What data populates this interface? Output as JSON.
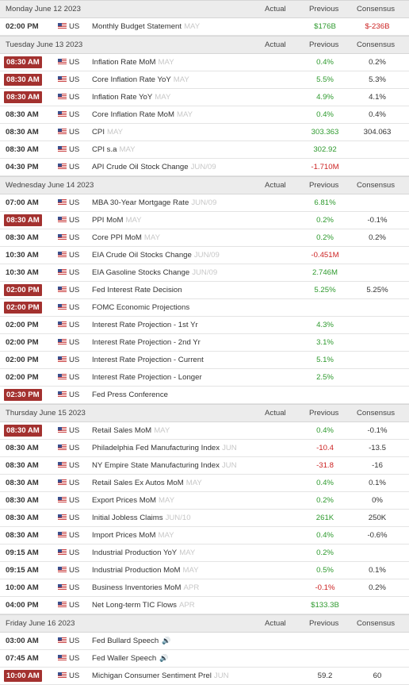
{
  "columns": {
    "actual": "Actual",
    "previous": "Previous",
    "consensus": "Consensus"
  },
  "colors": {
    "highlight": "#a3312f",
    "positive": "#2e9a2e",
    "negative": "#cc2222",
    "header_bg": "#ececec"
  },
  "days": [
    {
      "label": "Monday June 12 2023",
      "events": [
        {
          "time": "02:00 PM",
          "hl": false,
          "country": "US",
          "event": "Monthly Budget Statement",
          "ref": "MAY",
          "actual": "",
          "previous": "$176B",
          "previous_color": "green",
          "consensus": "$-236B",
          "consensus_color": "red"
        }
      ]
    },
    {
      "label": "Tuesday June 13 2023",
      "events": [
        {
          "time": "08:30 AM",
          "hl": true,
          "country": "US",
          "event": "Inflation Rate MoM",
          "ref": "MAY",
          "actual": "",
          "previous": "0.4%",
          "previous_color": "green",
          "consensus": "0.2%"
        },
        {
          "time": "08:30 AM",
          "hl": true,
          "country": "US",
          "event": "Core Inflation Rate YoY",
          "ref": "MAY",
          "actual": "",
          "previous": "5.5%",
          "previous_color": "green",
          "consensus": "5.3%"
        },
        {
          "time": "08:30 AM",
          "hl": true,
          "country": "US",
          "event": "Inflation Rate YoY",
          "ref": "MAY",
          "actual": "",
          "previous": "4.9%",
          "previous_color": "green",
          "consensus": "4.1%"
        },
        {
          "time": "08:30 AM",
          "hl": false,
          "country": "US",
          "event": "Core Inflation Rate MoM",
          "ref": "MAY",
          "actual": "",
          "previous": "0.4%",
          "previous_color": "green",
          "consensus": "0.4%"
        },
        {
          "time": "08:30 AM",
          "hl": false,
          "country": "US",
          "event": "CPI",
          "ref": "MAY",
          "actual": "",
          "previous": "303.363",
          "previous_color": "green",
          "consensus": "304.063"
        },
        {
          "time": "08:30 AM",
          "hl": false,
          "country": "US",
          "event": "CPI s.a",
          "ref": "MAY",
          "actual": "",
          "previous": "302.92",
          "previous_color": "green",
          "consensus": ""
        },
        {
          "time": "04:30 PM",
          "hl": false,
          "country": "US",
          "event": "API Crude Oil Stock Change",
          "ref": "JUN/09",
          "actual": "",
          "previous": "-1.710M",
          "previous_color": "red",
          "consensus": ""
        }
      ]
    },
    {
      "label": "Wednesday June 14 2023",
      "events": [
        {
          "time": "07:00 AM",
          "hl": false,
          "country": "US",
          "event": "MBA 30-Year Mortgage Rate",
          "ref": "JUN/09",
          "actual": "",
          "previous": "6.81%",
          "previous_color": "green",
          "consensus": ""
        },
        {
          "time": "08:30 AM",
          "hl": true,
          "country": "US",
          "event": "PPI MoM",
          "ref": "MAY",
          "actual": "",
          "previous": "0.2%",
          "previous_color": "green",
          "consensus": "-0.1%"
        },
        {
          "time": "08:30 AM",
          "hl": false,
          "country": "US",
          "event": "Core PPI MoM",
          "ref": "MAY",
          "actual": "",
          "previous": "0.2%",
          "previous_color": "green",
          "consensus": "0.2%"
        },
        {
          "time": "10:30 AM",
          "hl": false,
          "country": "US",
          "event": "EIA Crude Oil Stocks Change",
          "ref": "JUN/09",
          "actual": "",
          "previous": "-0.451M",
          "previous_color": "red",
          "consensus": ""
        },
        {
          "time": "10:30 AM",
          "hl": false,
          "country": "US",
          "event": "EIA Gasoline Stocks Change",
          "ref": "JUN/09",
          "actual": "",
          "previous": "2.746M",
          "previous_color": "green",
          "consensus": ""
        },
        {
          "time": "02:00 PM",
          "hl": true,
          "country": "US",
          "event": "Fed Interest Rate Decision",
          "ref": "",
          "actual": "",
          "previous": "5.25%",
          "previous_color": "green",
          "consensus": "5.25%"
        },
        {
          "time": "02:00 PM",
          "hl": true,
          "country": "US",
          "event": "FOMC Economic Projections",
          "ref": "",
          "actual": "",
          "previous": "",
          "previous_color": "green",
          "consensus": ""
        },
        {
          "time": "02:00 PM",
          "hl": false,
          "country": "US",
          "event": "Interest Rate Projection - 1st Yr",
          "ref": "",
          "actual": "",
          "previous": "4.3%",
          "previous_color": "green",
          "consensus": ""
        },
        {
          "time": "02:00 PM",
          "hl": false,
          "country": "US",
          "event": "Interest Rate Projection - 2nd Yr",
          "ref": "",
          "actual": "",
          "previous": "3.1%",
          "previous_color": "green",
          "consensus": ""
        },
        {
          "time": "02:00 PM",
          "hl": false,
          "country": "US",
          "event": "Interest Rate Projection - Current",
          "ref": "",
          "actual": "",
          "previous": "5.1%",
          "previous_color": "green",
          "consensus": ""
        },
        {
          "time": "02:00 PM",
          "hl": false,
          "country": "US",
          "event": "Interest Rate Projection - Longer",
          "ref": "",
          "actual": "",
          "previous": "2.5%",
          "previous_color": "green",
          "consensus": ""
        },
        {
          "time": "02:30 PM",
          "hl": true,
          "country": "US",
          "event": "Fed Press Conference",
          "ref": "",
          "actual": "",
          "previous": "",
          "previous_color": "green",
          "consensus": ""
        }
      ]
    },
    {
      "label": "Thursday June 15 2023",
      "events": [
        {
          "time": "08:30 AM",
          "hl": true,
          "country": "US",
          "event": "Retail Sales MoM",
          "ref": "MAY",
          "actual": "",
          "previous": "0.4%",
          "previous_color": "green",
          "consensus": "-0.1%"
        },
        {
          "time": "08:30 AM",
          "hl": false,
          "country": "US",
          "event": "Philadelphia Fed Manufacturing Index",
          "ref": "JUN",
          "actual": "",
          "previous": "-10.4",
          "previous_color": "red",
          "consensus": "-13.5"
        },
        {
          "time": "08:30 AM",
          "hl": false,
          "country": "US",
          "event": "NY Empire State Manufacturing Index",
          "ref": "JUN",
          "actual": "",
          "previous": "-31.8",
          "previous_color": "red",
          "consensus": "-16"
        },
        {
          "time": "08:30 AM",
          "hl": false,
          "country": "US",
          "event": "Retail Sales Ex Autos MoM",
          "ref": "MAY",
          "actual": "",
          "previous": "0.4%",
          "previous_color": "green",
          "consensus": "0.1%"
        },
        {
          "time": "08:30 AM",
          "hl": false,
          "country": "US",
          "event": "Export Prices MoM",
          "ref": "MAY",
          "actual": "",
          "previous": "0.2%",
          "previous_color": "green",
          "consensus": "0%"
        },
        {
          "time": "08:30 AM",
          "hl": false,
          "country": "US",
          "event": "Initial Jobless Claims",
          "ref": "JUN/10",
          "actual": "",
          "previous": "261K",
          "previous_color": "green",
          "consensus": "250K"
        },
        {
          "time": "08:30 AM",
          "hl": false,
          "country": "US",
          "event": "Import Prices MoM",
          "ref": "MAY",
          "actual": "",
          "previous": "0.4%",
          "previous_color": "green",
          "consensus": "-0.6%"
        },
        {
          "time": "09:15 AM",
          "hl": false,
          "country": "US",
          "event": "Industrial Production YoY",
          "ref": "MAY",
          "actual": "",
          "previous": "0.2%",
          "previous_color": "green",
          "consensus": ""
        },
        {
          "time": "09:15 AM",
          "hl": false,
          "country": "US",
          "event": "Industrial Production MoM",
          "ref": "MAY",
          "actual": "",
          "previous": "0.5%",
          "previous_color": "green",
          "consensus": "0.1%"
        },
        {
          "time": "10:00 AM",
          "hl": false,
          "country": "US",
          "event": "Business Inventories MoM",
          "ref": "APR",
          "actual": "",
          "previous": "-0.1%",
          "previous_color": "red",
          "consensus": "0.2%"
        },
        {
          "time": "04:00 PM",
          "hl": false,
          "country": "US",
          "event": "Net Long-term TIC Flows",
          "ref": "APR",
          "actual": "",
          "previous": "$133.3B",
          "previous_color": "green",
          "consensus": ""
        }
      ]
    },
    {
      "label": "Friday June 16 2023",
      "events": [
        {
          "time": "03:00 AM",
          "hl": false,
          "country": "US",
          "event": "Fed Bullard Speech",
          "ref": "",
          "speaker": true,
          "actual": "",
          "previous": "",
          "previous_color": "green",
          "consensus": ""
        },
        {
          "time": "07:45 AM",
          "hl": false,
          "country": "US",
          "event": "Fed Waller Speech",
          "ref": "",
          "speaker": true,
          "actual": "",
          "previous": "",
          "previous_color": "green",
          "consensus": ""
        },
        {
          "time": "10:00 AM",
          "hl": true,
          "country": "US",
          "event": "Michigan Consumer Sentiment Prel",
          "ref": "JUN",
          "actual": "",
          "previous": "59.2",
          "previous_color": "dark",
          "consensus": "60"
        }
      ]
    }
  ]
}
